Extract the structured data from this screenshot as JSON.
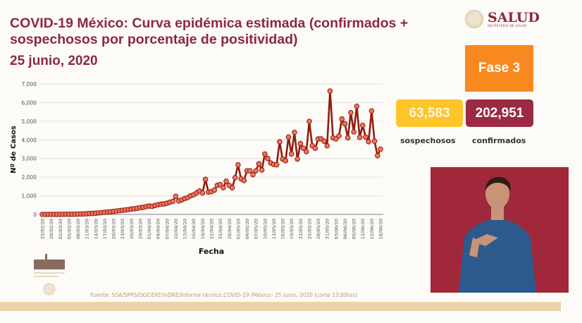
{
  "header": {
    "title": "COVID-19 México: Curva epidémica estimada (confirmados + sospechosos por porcentaje de positividad)",
    "date": "25 junio, 2020",
    "logo_text": "SALUD",
    "logo_subtext": "SECRETARÍA DE SALUD"
  },
  "stats": {
    "phase": "Fase 3",
    "suspected_value": "63,583",
    "suspected_label": "sospechosos",
    "confirmed_value": "202,951",
    "confirmed_label": "confirmados"
  },
  "footer": {
    "source": "Fuente: SSA/SPPS/DGE/DIE/InDRE/Informe técnico.COVID-19 /México- 25 junio, 2020 (corte 13:00hrs)"
  },
  "colors": {
    "title": "#8b2a3c",
    "phase": "#f7891f",
    "suspected": "#fdc52a",
    "confirmed": "#9c2a43",
    "line": "#8f1d0e",
    "marker": "#f0735e"
  },
  "chart_data": {
    "type": "line",
    "title": "",
    "xlabel": "Fecha",
    "ylabel": "Nº de Casos",
    "ylim": [
      0,
      7000
    ],
    "yticks": [
      "0",
      "1,000",
      "2,000",
      "3,000",
      "4,000",
      "5,000",
      "6,000",
      "7,000"
    ],
    "grid": true,
    "tick_every": 3,
    "x": [
      "25/02/20",
      "26/02/20",
      "27/02/20",
      "28/02/20",
      "29/02/20",
      "01/03/20",
      "02/03/20",
      "03/03/20",
      "04/03/20",
      "05/03/20",
      "06/03/20",
      "07/03/20",
      "08/03/20",
      "09/03/20",
      "10/03/20",
      "11/03/20",
      "12/03/20",
      "13/03/20",
      "14/03/20",
      "15/03/20",
      "16/03/20",
      "17/03/20",
      "18/03/20",
      "19/03/20",
      "20/03/20",
      "21/03/20",
      "22/03/20",
      "23/03/20",
      "24/03/20",
      "25/03/20",
      "26/03/20",
      "27/03/20",
      "28/03/20",
      "29/03/20",
      "30/03/20",
      "31/03/20",
      "01/04/20",
      "02/04/20",
      "03/04/20",
      "04/04/20",
      "05/04/20",
      "06/04/20",
      "07/04/20",
      "08/04/20",
      "09/04/20",
      "10/04/20",
      "11/04/20",
      "12/04/20",
      "13/04/20",
      "14/04/20",
      "15/04/20",
      "16/04/20",
      "17/04/20",
      "18/04/20",
      "19/04/20",
      "20/04/20",
      "21/04/20",
      "22/04/20",
      "23/04/20",
      "24/04/20",
      "25/04/20",
      "26/04/20",
      "27/04/20",
      "28/04/20",
      "29/04/20",
      "30/04/20",
      "01/05/20",
      "02/05/20",
      "03/05/20",
      "04/05/20",
      "05/05/20",
      "06/05/20",
      "07/05/20",
      "08/05/20",
      "09/05/20",
      "10/05/20",
      "11/05/20",
      "12/05/20",
      "13/05/20",
      "14/05/20",
      "15/05/20",
      "16/05/20",
      "17/05/20",
      "18/05/20",
      "19/05/20",
      "20/05/20",
      "21/05/20",
      "22/05/20",
      "23/05/20",
      "24/05/20",
      "25/05/20",
      "26/05/20",
      "27/05/20",
      "28/05/20",
      "29/05/20",
      "30/05/20",
      "31/05/20",
      "01/06/20",
      "02/06/20",
      "03/06/20",
      "04/06/20",
      "05/06/20",
      "06/06/20",
      "07/06/20",
      "08/06/20",
      "09/06/20",
      "10/06/20",
      "11/06/20",
      "12/06/20",
      "13/06/20",
      "14/06/20",
      "15/06/20",
      "16/06/20",
      "17/06/20",
      "18/06/20"
    ],
    "values": [
      0,
      0,
      0,
      0,
      1,
      2,
      4,
      5,
      6,
      7,
      8,
      10,
      15,
      20,
      25,
      35,
      45,
      55,
      65,
      80,
      95,
      110,
      125,
      140,
      160,
      180,
      200,
      220,
      240,
      260,
      290,
      300,
      330,
      360,
      380,
      420,
      450,
      430,
      480,
      520,
      550,
      560,
      600,
      650,
      700,
      970,
      720,
      780,
      850,
      900,
      1000,
      1050,
      1150,
      1250,
      1150,
      1880,
      1200,
      1220,
      1310,
      1560,
      1600,
      1430,
      1780,
      1560,
      1430,
      1970,
      2660,
      1910,
      1820,
      2340,
      2340,
      2130,
      2340,
      2720,
      2380,
      3240,
      3000,
      2760,
      2680,
      2660,
      3900,
      2970,
      2880,
      4150,
      3240,
      4400,
      2970,
      3800,
      3550,
      3370,
      4990,
      3680,
      3550,
      4050,
      4050,
      3930,
      3680,
      6620,
      4110,
      4050,
      4210,
      5120,
      4860,
      4110,
      5460,
      4430,
      5800,
      4130,
      4780,
      4150,
      3900,
      5550,
      3930,
      3150,
      3500
    ]
  }
}
